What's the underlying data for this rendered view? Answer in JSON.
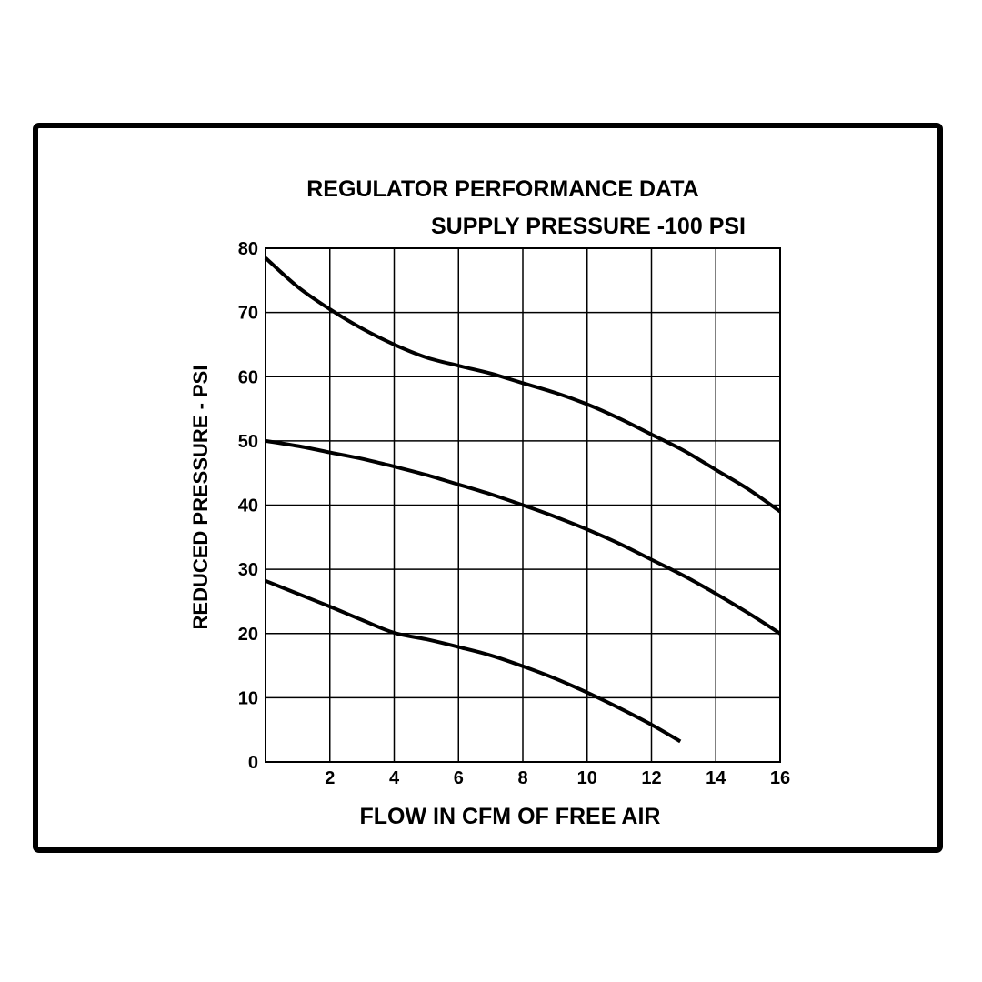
{
  "chart_data": {
    "type": "line",
    "title": "REGULATOR PERFORMANCE DATA",
    "subtitle": "SUPPLY PRESSURE -100 PSI",
    "xlabel": "FLOW IN CFM OF FREE AIR",
    "ylabel": "REDUCED PRESSURE - PSI",
    "xlim": [
      0,
      16
    ],
    "ylim": [
      0,
      80
    ],
    "grid": true,
    "x_ticks": [
      2,
      4,
      6,
      8,
      10,
      12,
      14,
      16
    ],
    "y_ticks": [
      0,
      10,
      20,
      30,
      40,
      50,
      60,
      70,
      80
    ],
    "x_tick_labels": [
      "2",
      "4",
      "6",
      "8",
      "10",
      "12",
      "14",
      "16"
    ],
    "y_tick_labels": [
      "0",
      "10",
      "20",
      "30",
      "40",
      "50",
      "60",
      "70",
      "80"
    ],
    "series": [
      {
        "x": [
          0,
          1,
          2,
          3,
          4,
          5,
          6,
          7,
          8,
          9,
          10,
          11,
          12,
          13,
          14,
          15,
          16
        ],
        "y": [
          78.5,
          74,
          70.5,
          67.5,
          65,
          63,
          61.7,
          60.5,
          59,
          57.5,
          55.7,
          53.5,
          51,
          48.5,
          45.5,
          42.5,
          39
        ]
      },
      {
        "x": [
          0,
          1,
          2,
          3,
          4,
          5,
          6,
          7,
          8,
          9,
          10,
          11,
          12,
          13,
          14,
          15,
          16
        ],
        "y": [
          50,
          49.2,
          48.2,
          47.2,
          46,
          44.7,
          43.2,
          41.7,
          40,
          38.2,
          36.2,
          34,
          31.5,
          29,
          26.2,
          23.2,
          20
        ]
      },
      {
        "x": [
          0,
          1,
          2,
          3,
          4,
          5,
          6,
          7,
          8,
          9,
          10,
          11,
          12,
          12.9
        ],
        "y": [
          28.2,
          26.2,
          24.2,
          22.1,
          20.1,
          19.1,
          17.9,
          16.6,
          14.9,
          13,
          10.8,
          8.4,
          5.8,
          3.2
        ]
      }
    ]
  }
}
